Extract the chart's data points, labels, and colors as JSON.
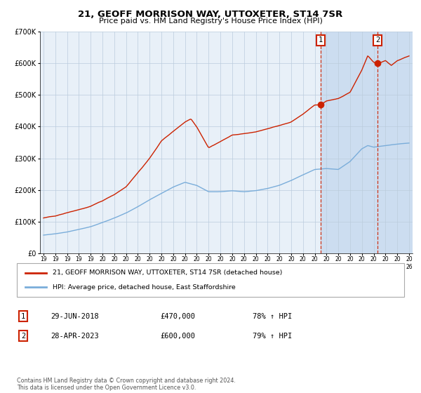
{
  "title": "21, GEOFF MORRISON WAY, UTTOXETER, ST14 7SR",
  "subtitle": "Price paid vs. HM Land Registry's House Price Index (HPI)",
  "legend_line1": "21, GEOFF MORRISON WAY, UTTOXETER, ST14 7SR (detached house)",
  "legend_line2": "HPI: Average price, detached house, East Staffordshire",
  "sale1_label": "1",
  "sale1_date": "29-JUN-2018",
  "sale1_price": "£470,000",
  "sale1_hpi": "78% ↑ HPI",
  "sale1_year": 2018.5,
  "sale1_value": 470000,
  "sale2_label": "2",
  "sale2_date": "28-APR-2023",
  "sale2_price": "£600,000",
  "sale2_hpi": "79% ↑ HPI",
  "sale2_year": 2023.33,
  "sale2_value": 600000,
  "hpi_color": "#7aadda",
  "price_color": "#cc2200",
  "background_color": "#ffffff",
  "plot_bg_color": "#e8f0f8",
  "shaded_bg_color": "#ccddf0",
  "grid_color": "#bbccdd",
  "footnote": "Contains HM Land Registry data © Crown copyright and database right 2024.\nThis data is licensed under the Open Government Licence v3.0.",
  "ylim": [
    0,
    700000
  ],
  "xlim_start": 1995,
  "xlim_end": 2026,
  "hpi_waypoints_x": [
    1995,
    1996,
    1997,
    1998,
    1999,
    2000,
    2001,
    2002,
    2003,
    2004,
    2005,
    2006,
    2007,
    2008,
    2009,
    2010,
    2011,
    2012,
    2013,
    2014,
    2015,
    2016,
    2017,
    2018,
    2019,
    2020,
    2021,
    2022,
    2022.5,
    2023,
    2024,
    2025,
    2026
  ],
  "hpi_waypoints_y": [
    58000,
    62000,
    68000,
    76000,
    85000,
    98000,
    112000,
    128000,
    148000,
    170000,
    190000,
    210000,
    225000,
    215000,
    195000,
    195000,
    198000,
    195000,
    198000,
    205000,
    215000,
    230000,
    248000,
    265000,
    268000,
    265000,
    290000,
    330000,
    340000,
    335000,
    340000,
    345000,
    348000
  ],
  "price_waypoints_x": [
    1995,
    1996,
    1997,
    1998,
    1999,
    2000,
    2001,
    2002,
    2003,
    2004,
    2005,
    2006,
    2007,
    2007.5,
    2008,
    2009,
    2010,
    2011,
    2012,
    2013,
    2014,
    2015,
    2016,
    2017,
    2018,
    2018.5,
    2019,
    2020,
    2021,
    2022,
    2022.5,
    2023,
    2023.33,
    2024,
    2024.5,
    2025,
    2026
  ],
  "price_waypoints_y": [
    112000,
    118000,
    128000,
    138000,
    148000,
    165000,
    185000,
    210000,
    255000,
    300000,
    355000,
    385000,
    415000,
    425000,
    400000,
    335000,
    355000,
    375000,
    380000,
    385000,
    395000,
    405000,
    415000,
    440000,
    470000,
    470000,
    482000,
    490000,
    510000,
    580000,
    625000,
    605000,
    600000,
    610000,
    595000,
    610000,
    625000
  ]
}
